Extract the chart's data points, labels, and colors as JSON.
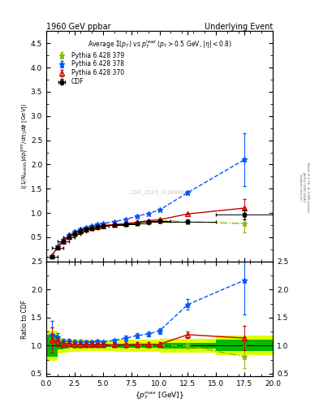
{
  "title_left": "1960 GeV ppbar",
  "title_right": "Underlying Event",
  "plot_title": "Average $\\Sigma(p_T)$ vs $p_T^{lead}$ ($p_T > 0.5$ GeV, $|\\eta| < 0.8$)",
  "xlabel": "$\\{p_T^{max}$ [GeV]$\\}$",
  "ylabel_main": "$\\langle(1/N_{events}) dp_T^{sum}/d\\eta_1 d\\phi$ [GeV]$\\rangle$",
  "ylabel_ratio": "Ratio to CDF",
  "watermark": "CDF_2015_I1388868",
  "right_label1": "mcplots.cern.ch",
  "right_label2": "[arXiv:1306.3436]",
  "right_label3": "Rivet 3.1.10, ≥ 2.6M events",
  "cdf_x": [
    0.5,
    1.0,
    1.5,
    2.0,
    2.5,
    3.0,
    3.5,
    4.0,
    4.5,
    5.0,
    6.0,
    7.0,
    8.0,
    9.0,
    10.0,
    12.5,
    17.5
  ],
  "cdf_y": [
    0.1,
    0.28,
    0.41,
    0.5,
    0.57,
    0.62,
    0.66,
    0.69,
    0.71,
    0.73,
    0.75,
    0.77,
    0.79,
    0.82,
    0.84,
    0.82,
    0.97
  ],
  "cdf_ey": [
    0.02,
    0.02,
    0.02,
    0.02,
    0.02,
    0.02,
    0.02,
    0.02,
    0.02,
    0.02,
    0.02,
    0.03,
    0.03,
    0.03,
    0.03,
    0.04,
    0.1
  ],
  "cdf_ex": [
    0.5,
    0.5,
    0.5,
    0.5,
    0.5,
    0.5,
    0.5,
    0.5,
    0.5,
    0.5,
    1.0,
    1.0,
    1.0,
    1.0,
    1.0,
    2.5,
    2.5
  ],
  "p370_x": [
    0.5,
    1.0,
    1.5,
    2.0,
    2.5,
    3.0,
    3.5,
    4.0,
    4.5,
    5.0,
    6.0,
    7.0,
    8.0,
    9.0,
    10.0,
    12.5,
    17.5
  ],
  "p370_y": [
    0.11,
    0.3,
    0.42,
    0.52,
    0.58,
    0.63,
    0.67,
    0.7,
    0.72,
    0.74,
    0.76,
    0.78,
    0.81,
    0.84,
    0.86,
    0.98,
    1.1
  ],
  "p370_ey": [
    0.004,
    0.004,
    0.004,
    0.004,
    0.004,
    0.004,
    0.004,
    0.004,
    0.004,
    0.004,
    0.004,
    0.004,
    0.006,
    0.006,
    0.008,
    0.012,
    0.18
  ],
  "p370_color": "#cc0000",
  "p370_label": "Pythia 6.428 370",
  "p378_x": [
    0.5,
    1.0,
    1.5,
    2.0,
    2.5,
    3.0,
    3.5,
    4.0,
    4.5,
    5.0,
    6.0,
    7.0,
    8.0,
    9.0,
    10.0,
    12.5,
    17.5
  ],
  "p378_y": [
    0.12,
    0.32,
    0.44,
    0.54,
    0.61,
    0.66,
    0.7,
    0.73,
    0.76,
    0.78,
    0.82,
    0.87,
    0.93,
    0.99,
    1.06,
    1.42,
    2.1
  ],
  "p378_ey": [
    0.004,
    0.004,
    0.004,
    0.004,
    0.004,
    0.004,
    0.004,
    0.004,
    0.004,
    0.004,
    0.006,
    0.008,
    0.01,
    0.012,
    0.016,
    0.035,
    0.55
  ],
  "p378_color": "#0055ff",
  "p378_label": "Pythia 6.428 378",
  "p379_x": [
    0.5,
    1.0,
    1.5,
    2.0,
    2.5,
    3.0,
    3.5,
    4.0,
    4.5,
    5.0,
    6.0,
    7.0,
    8.0,
    9.0,
    10.0,
    12.5,
    17.5
  ],
  "p379_y": [
    0.11,
    0.3,
    0.42,
    0.51,
    0.57,
    0.62,
    0.66,
    0.69,
    0.71,
    0.73,
    0.75,
    0.77,
    0.79,
    0.82,
    0.84,
    0.82,
    0.78
  ],
  "p379_ey": [
    0.004,
    0.004,
    0.004,
    0.004,
    0.004,
    0.004,
    0.004,
    0.004,
    0.004,
    0.004,
    0.004,
    0.004,
    0.006,
    0.006,
    0.008,
    0.012,
    0.18
  ],
  "p379_color": "#88bb00",
  "p379_label": "Pythia 6.428 379",
  "ylim_main": [
    0.0,
    4.75
  ],
  "ylim_ratio": [
    0.45,
    2.5
  ],
  "xlim": [
    0.0,
    20.0
  ],
  "band_green_color": "#00bb00",
  "band_yellow_color": "#ddff00"
}
